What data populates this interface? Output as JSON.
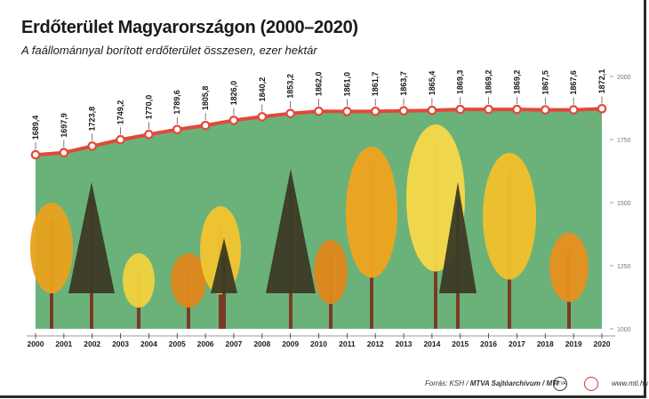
{
  "header": {
    "title": "Erdőterület Magyarországon (2000–2020)",
    "subtitle": "A faállománnyal borított erdőterület összesen, ezer hektár"
  },
  "footer": {
    "source_prefix": "Forrás: KSH / ",
    "source_bold": "MTVA Sajtóarchívum / MTI",
    "logo1": "MTVA",
    "url": "www.mti.hu"
  },
  "colors": {
    "area": "#6ab27a",
    "line": "#e2483a",
    "marker_fill": "#ffffff",
    "trunk": "#7a3b22"
  },
  "chart_data": {
    "type": "line",
    "x": [
      "2000",
      "2001",
      "2002",
      "2003",
      "2004",
      "2005",
      "2006",
      "2007",
      "2008",
      "2009",
      "2010",
      "2011",
      "2012",
      "2013",
      "2014",
      "2015",
      "2016",
      "2017",
      "2018",
      "2019",
      "2020"
    ],
    "values": [
      1689.4,
      1697.9,
      1723.8,
      1749.2,
      1770.0,
      1789.6,
      1805.8,
      1826.0,
      1840.2,
      1853.2,
      1862.0,
      1861.0,
      1861.7,
      1863.7,
      1865.4,
      1869.3,
      1869.2,
      1869.2,
      1867.5,
      1867.6,
      1872.1
    ],
    "labels": [
      "1689,4",
      "1697,9",
      "1723,8",
      "1749,2",
      "1770,0",
      "1789,6",
      "1805,8",
      "1826,0",
      "1840,2",
      "1853,2",
      "1862,0",
      "1861,0",
      "1861,7",
      "1863,7",
      "1865,4",
      "1869,3",
      "1869,2",
      "1869,2",
      "1867,5",
      "1867,6",
      "1872,1"
    ],
    "ylim": [
      1000,
      2000
    ],
    "yticks": [
      1000,
      1250,
      1500,
      1750,
      2000
    ],
    "ytick_labels": [
      "1000",
      "1250",
      "1500",
      "1750",
      "2000"
    ],
    "y_axis_side": "right",
    "grid": false,
    "area_fill": true
  }
}
